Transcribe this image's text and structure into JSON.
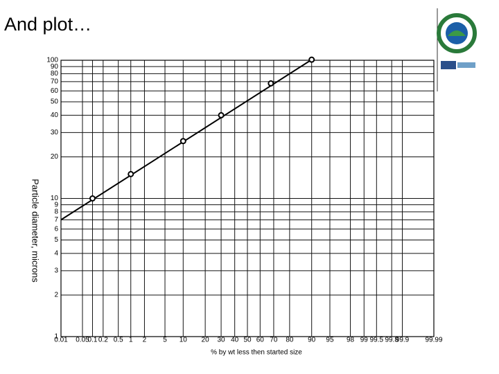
{
  "chart_data": {
    "type": "probability-log",
    "title": "And plot…",
    "xlabel": "% by wt less then started size",
    "ylabel": "Particle diameter, microns",
    "xscale": "probability",
    "yscale": "log",
    "xlim": [
      0.01,
      99.99
    ],
    "ylim": [
      1,
      100
    ],
    "xticks": [
      0.01,
      0.05,
      0.1,
      0.2,
      0.5,
      1,
      2,
      5,
      10,
      20,
      30,
      40,
      50,
      60,
      70,
      80,
      90,
      95,
      98,
      99,
      99.5,
      99.8,
      99.9,
      99.99
    ],
    "yticks": [
      1,
      2,
      3,
      4,
      5,
      6,
      7,
      8,
      9,
      10,
      20,
      30,
      40,
      50,
      60,
      70,
      80,
      90,
      100
    ],
    "grid": true,
    "color": "#000000",
    "points": {
      "x": [
        0.1,
        1,
        10,
        30,
        68,
        90
      ],
      "y": [
        10,
        15,
        26,
        40,
        68,
        101
      ]
    },
    "fit_line": {
      "x": [
        0.01,
        90
      ],
      "y": [
        7,
        101
      ]
    }
  }
}
